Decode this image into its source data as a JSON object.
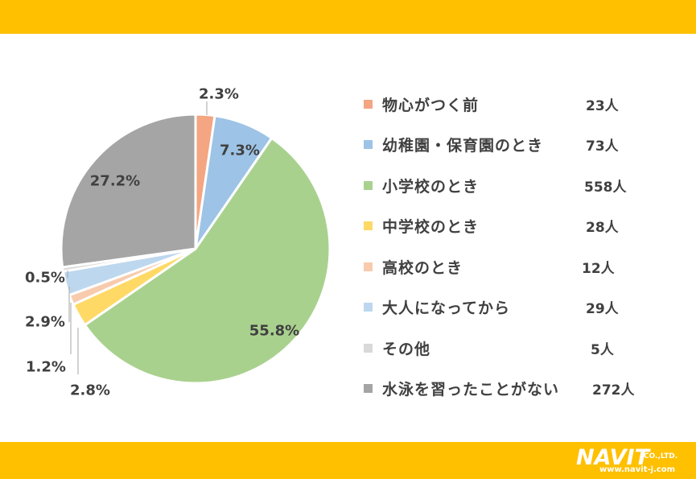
{
  "colors": {
    "band": "#ffc000",
    "slice_border": "#ffffff",
    "label_text": "#404040",
    "leader_line": "#a6a6a6"
  },
  "chart_data": {
    "type": "pie",
    "start_angle_deg": 0,
    "direction": "clockwise",
    "legend_position": "right",
    "slices": [
      {
        "label": "物心がつく前",
        "count": "23人",
        "value": 2.3,
        "percent_label": "2.3%",
        "color": "#f4a582"
      },
      {
        "label": "幼稚園・保育園のとき",
        "count": "73人",
        "value": 7.3,
        "percent_label": "7.3%",
        "color": "#9dc3e6"
      },
      {
        "label": "小学校のとき",
        "count": "558人",
        "value": 55.8,
        "percent_label": "55.8%",
        "color": "#a9d18e"
      },
      {
        "label": "中学校のとき",
        "count": "28人",
        "value": 2.8,
        "percent_label": "2.8%",
        "color": "#ffd966"
      },
      {
        "label": "高校のとき",
        "count": "12人",
        "value": 1.2,
        "percent_label": "1.2%",
        "color": "#f8cbad"
      },
      {
        "label": "大人になってから",
        "count": "29人",
        "value": 2.9,
        "percent_label": "2.9%",
        "color": "#bdd7ee"
      },
      {
        "label": "その他",
        "count": "5人",
        "value": 0.5,
        "percent_label": "0.5%",
        "color": "#d9d9d9"
      },
      {
        "label": "水泳を習ったことがない",
        "count": "272人",
        "value": 27.2,
        "percent_label": "27.2%",
        "color": "#a5a5a5"
      }
    ]
  },
  "logo": {
    "name": "NAVIT",
    "suffix": "CO.,LTD.",
    "url": "www.navit-j.com"
  }
}
